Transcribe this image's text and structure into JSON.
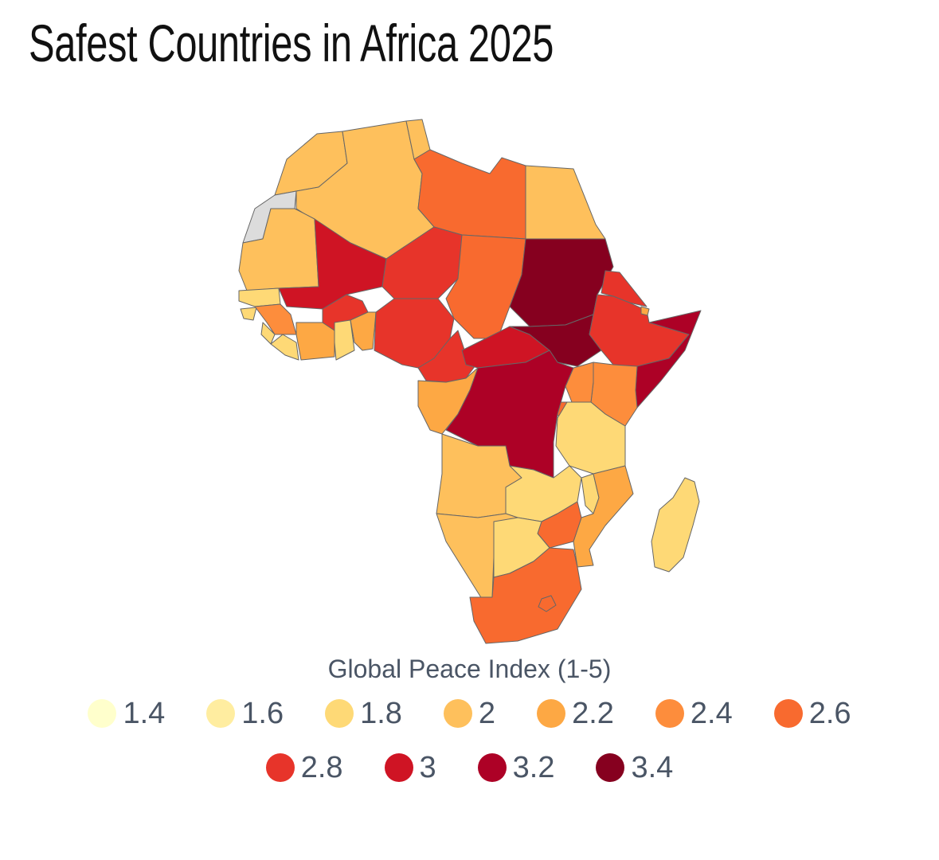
{
  "title": "Safest Countries in Africa 2025",
  "legend": {
    "title": "Global Peace Index (1-5)",
    "items": [
      {
        "label": "1.4",
        "color": "#ffffcc"
      },
      {
        "label": "1.6",
        "color": "#ffeda0"
      },
      {
        "label": "1.8",
        "color": "#fed976"
      },
      {
        "label": "2",
        "color": "#fec05c"
      },
      {
        "label": "2.2",
        "color": "#fda844"
      },
      {
        "label": "2.4",
        "color": "#fd8d3c"
      },
      {
        "label": "2.6",
        "color": "#f86a2f"
      },
      {
        "label": "2.8",
        "color": "#e7342a"
      },
      {
        "label": "3",
        "color": "#cf1424"
      },
      {
        "label": "3.2",
        "color": "#ad0126"
      },
      {
        "label": "3.4",
        "color": "#86001f"
      }
    ]
  },
  "colors": {
    "no_data": "#dcdcdc",
    "border": "#666666",
    "ocean": "#ffffff"
  }
}
